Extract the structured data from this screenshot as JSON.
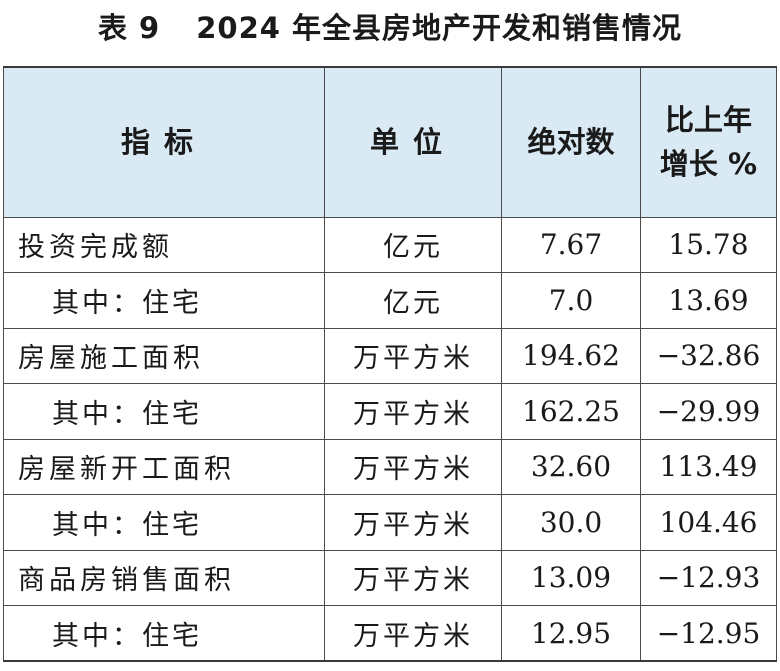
{
  "title": {
    "label": "表 9",
    "text": "2024 年全县房地产开发和销售情况"
  },
  "table": {
    "headers": {
      "indicator": "指标",
      "unit": "单位",
      "absolute": "绝对数",
      "growth_line1": "比上年",
      "growth_line2": "增长 %"
    },
    "rows": [
      {
        "name": "投资完成额",
        "unit": "亿元",
        "value": "7.67",
        "growth": "15.78"
      },
      {
        "name": "其中：住宅",
        "unit": "亿元",
        "value": "7.0",
        "growth": "13.69"
      },
      {
        "name": "房屋施工面积",
        "unit": "万平方米",
        "value": "194.62",
        "growth": "−32.86"
      },
      {
        "name": "其中：住宅",
        "unit": "万平方米",
        "value": "162.25",
        "growth": "−29.99"
      },
      {
        "name": "房屋新开工面积",
        "unit": "万平方米",
        "value": "32.60",
        "growth": "113.49"
      },
      {
        "name": "其中：住宅",
        "unit": "万平方米",
        "value": "30.0",
        "growth": "104.46"
      },
      {
        "name": "商品房销售面积",
        "unit": "万平方米",
        "value": "13.09",
        "growth": "−12.93"
      },
      {
        "name": "其中：住宅",
        "unit": "万平方米",
        "value": "12.95",
        "growth": "−12.95"
      }
    ]
  }
}
